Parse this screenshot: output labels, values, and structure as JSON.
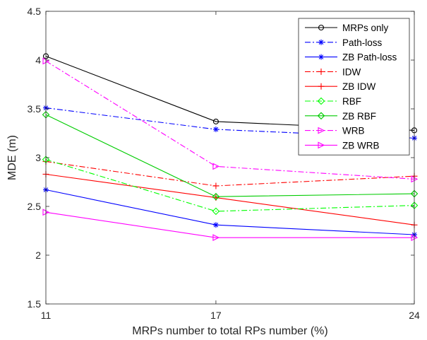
{
  "chart_data": {
    "type": "line",
    "title": "",
    "xlabel": "MRPs number to total RPs number (%)",
    "ylabel": "MDE (m)",
    "x": [
      11,
      17,
      24
    ],
    "xticks": [
      "11",
      "17",
      "24"
    ],
    "xlim": [
      11,
      24
    ],
    "ylim": [
      1.5,
      4.5
    ],
    "yticks": [
      "1.5",
      "2",
      "2.5",
      "3",
      "3.5",
      "4",
      "4.5"
    ],
    "grid": false,
    "legend_position": "top-right",
    "series": [
      {
        "name": "MRPs only",
        "values": [
          4.04,
          3.37,
          3.28
        ],
        "color": "#000000",
        "dash": "solid",
        "marker": "circle"
      },
      {
        "name": "Path-loss",
        "values": [
          3.51,
          3.29,
          3.2
        ],
        "color": "#0000ff",
        "dash": "dashdot",
        "marker": "asterisk"
      },
      {
        "name": "ZB Path-loss",
        "values": [
          2.67,
          2.31,
          2.21
        ],
        "color": "#0000ff",
        "dash": "solid",
        "marker": "asterisk"
      },
      {
        "name": "IDW",
        "values": [
          2.96,
          2.71,
          2.81
        ],
        "color": "#ff0000",
        "dash": "dashdot",
        "marker": "plus"
      },
      {
        "name": "ZB IDW",
        "values": [
          2.83,
          2.59,
          2.31
        ],
        "color": "#ff0000",
        "dash": "solid",
        "marker": "plus"
      },
      {
        "name": "RBF",
        "values": [
          2.98,
          2.45,
          2.51
        ],
        "color": "#00ff00",
        "dash": "dashdot",
        "marker": "diamond"
      },
      {
        "name": "ZB RBF",
        "values": [
          3.44,
          2.6,
          2.63
        ],
        "color": "#00cc00",
        "dash": "solid",
        "marker": "diamond"
      },
      {
        "name": "WRB",
        "values": [
          3.99,
          2.91,
          2.78
        ],
        "color": "#ff00ff",
        "dash": "dashdot",
        "marker": "triangle-right"
      },
      {
        "name": "ZB WRB",
        "values": [
          2.44,
          2.18,
          2.18
        ],
        "color": "#ff00ff",
        "dash": "solid",
        "marker": "triangle-right"
      }
    ]
  }
}
